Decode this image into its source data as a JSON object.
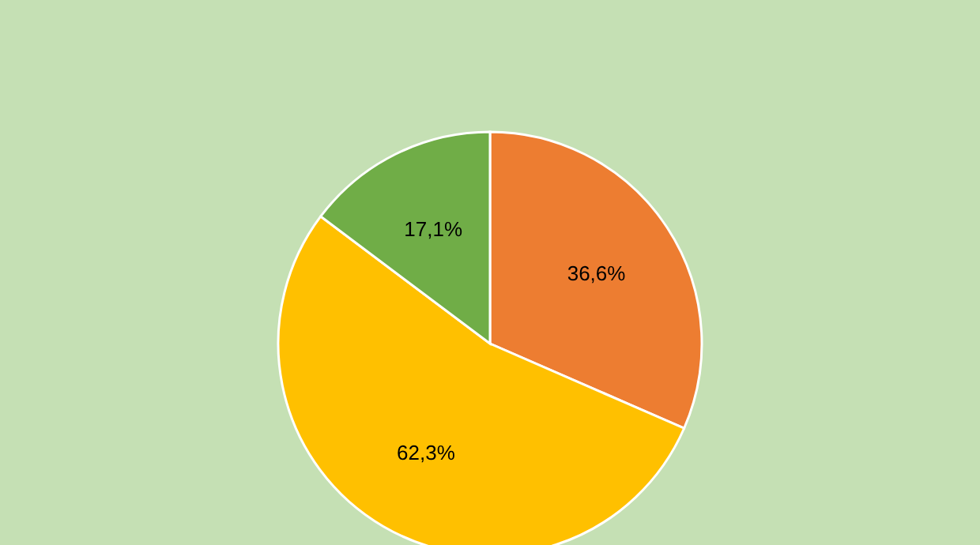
{
  "chart_data": {
    "type": "pie",
    "categories": [
      null,
      null,
      null
    ],
    "values": [
      36.6,
      62.3,
      17.1
    ],
    "colors": [
      "#ed7d31",
      "#ffc000",
      "#70ad47"
    ],
    "value_labels": [
      "36,6%",
      "62,3%",
      "17,1%"
    ],
    "legend": false
  }
}
